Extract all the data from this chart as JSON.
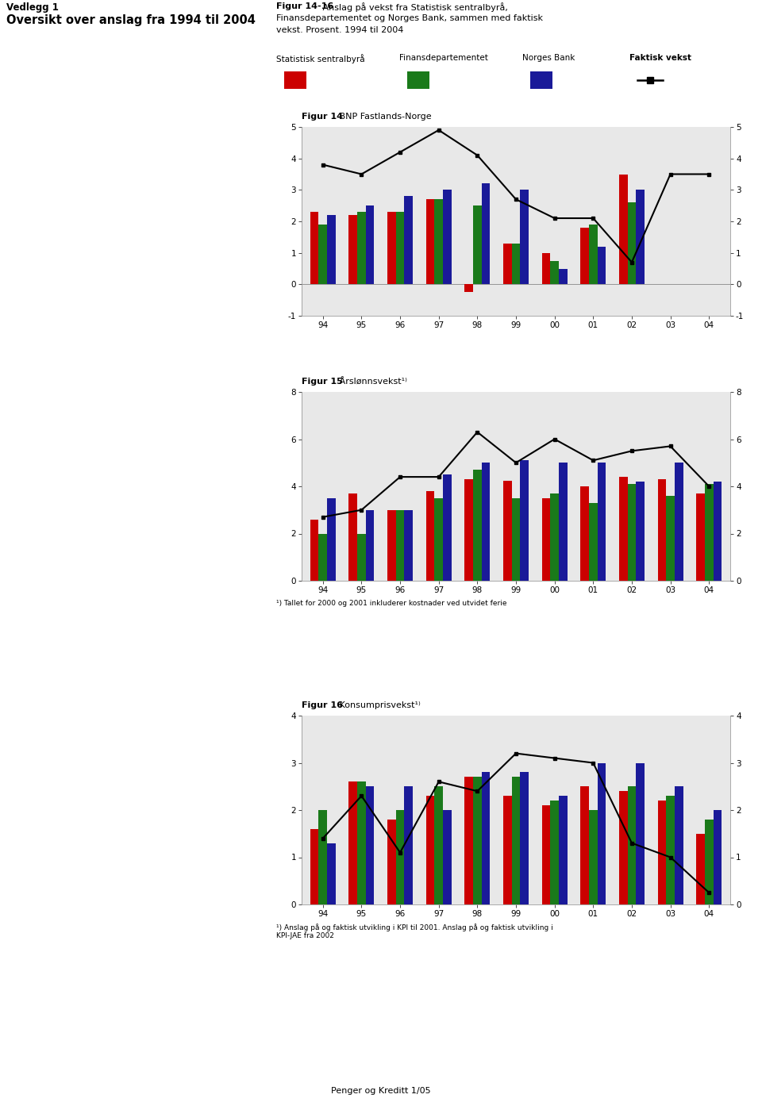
{
  "years": [
    "94",
    "95",
    "96",
    "97",
    "98",
    "99",
    "00",
    "01",
    "02",
    "03",
    "04"
  ],
  "legend_labels": [
    "Statistisk sentralbyrå",
    "Finansdepartementet",
    "Norges Bank",
    "Faktisk vekst"
  ],
  "colors": {
    "ssb": "#cc0000",
    "fd": "#1a7a1a",
    "nb": "#1a1a99",
    "faktisk": "#000000"
  },
  "fig14": {
    "title_bold": "Figur 14",
    "title_normal": " BNP Fastlands-Norge",
    "ssb": [
      2.3,
      2.2,
      2.3,
      2.7,
      -0.25,
      1.3,
      1.0,
      1.8,
      3.5,
      null,
      null
    ],
    "fd": [
      1.9,
      2.3,
      2.3,
      2.7,
      2.5,
      1.3,
      0.75,
      1.9,
      2.6,
      null,
      null
    ],
    "nb": [
      2.2,
      2.5,
      2.8,
      3.0,
      3.2,
      3.0,
      0.5,
      1.2,
      3.0,
      null,
      null
    ],
    "faktisk": [
      3.8,
      3.5,
      4.2,
      4.9,
      4.1,
      2.7,
      2.1,
      2.1,
      0.7,
      3.5,
      3.5
    ],
    "ylim": [
      -1,
      5
    ],
    "yticks": [
      -1,
      0,
      1,
      2,
      3,
      4,
      5
    ]
  },
  "fig15": {
    "title_bold": "Figur 15",
    "title_normal": " Årslønnsvekst¹⁾",
    "ssb": [
      2.6,
      3.7,
      3.0,
      3.8,
      4.3,
      4.25,
      3.5,
      4.0,
      4.4,
      4.3,
      3.7
    ],
    "fd": [
      2.0,
      2.0,
      3.0,
      3.5,
      4.7,
      3.5,
      3.7,
      3.3,
      4.1,
      3.6,
      4.1
    ],
    "nb": [
      3.5,
      3.0,
      3.0,
      4.5,
      5.0,
      5.1,
      5.0,
      5.0,
      4.2,
      5.0,
      4.2
    ],
    "faktisk": [
      2.7,
      3.0,
      4.4,
      4.4,
      6.3,
      5.0,
      6.0,
      5.1,
      5.5,
      5.7,
      4.0
    ],
    "ylim": [
      0,
      8
    ],
    "yticks": [
      0,
      2,
      4,
      6,
      8
    ]
  },
  "fig16": {
    "title_bold": "Figur 16",
    "title_normal": " Konsumprisvekst¹⁾",
    "ssb": [
      1.6,
      2.6,
      1.8,
      2.3,
      2.7,
      2.3,
      2.1,
      2.5,
      2.4,
      2.2,
      1.5
    ],
    "fd": [
      2.0,
      2.6,
      2.0,
      2.5,
      2.7,
      2.7,
      2.2,
      2.0,
      2.5,
      2.3,
      1.8
    ],
    "nb": [
      1.3,
      2.5,
      2.5,
      2.0,
      2.8,
      2.8,
      2.3,
      3.0,
      3.0,
      2.5,
      2.0
    ],
    "faktisk": [
      1.4,
      2.3,
      1.1,
      2.6,
      2.4,
      3.2,
      3.1,
      3.0,
      1.3,
      1.0,
      0.25
    ],
    "ylim": [
      0,
      4
    ],
    "yticks": [
      0,
      1,
      2,
      3,
      4
    ]
  },
  "note15": "¹) Tallet for 2000 og 2001 inkluderer kostnader ved utvidet ferie",
  "note16": "¹) Anslag på og faktisk utvikling i KPI til 2001. Anslag på og faktisk utvikling i\nKPI-JAE fra 2002",
  "header_title": "Figur 14-16",
  "header_subtitle": " Anslag på vekst fra Statistisk sentralbyrå,\nFinansdepartementet og Norges Bank, sammen med faktisk\nvekst. Prosent. 1994 til 2004",
  "left_title1": "Vedlegg 1",
  "left_title2": "Oversikt over anslag fra 1994 til 2004",
  "bg_chart": "#e8e8e8",
  "bg_outer": "#d8d8d8"
}
